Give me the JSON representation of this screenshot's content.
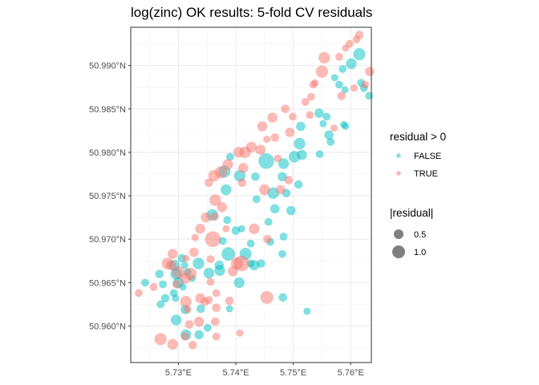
{
  "chart_data": {
    "type": "scatter",
    "title": "log(zinc) OK results: 5-fold CV residuals",
    "xlabel": "",
    "ylabel": "",
    "x_ticks": [
      5.73,
      5.74,
      5.75,
      5.76
    ],
    "x_tick_labels": [
      "5.73°E",
      "5.74°E",
      "5.75°E",
      "5.76°E"
    ],
    "y_ticks": [
      50.96,
      50.965,
      50.97,
      50.975,
      50.98,
      50.985,
      50.99
    ],
    "y_tick_labels": [
      "50.960°N",
      "50.965°N",
      "50.970°N",
      "50.975°N",
      "50.980°N",
      "50.985°N",
      "50.990°N"
    ],
    "xlim": [
      5.7217,
      5.7636
    ],
    "ylim": [
      50.9558,
      50.9944
    ],
    "grid": true,
    "legend_placement": "right",
    "colors": {
      "FALSE": "#00BFC4",
      "TRUE": "#F8766D",
      "size_key": "#000000"
    },
    "color_legend": {
      "title": "residual > 0",
      "entries": [
        "FALSE",
        "TRUE"
      ]
    },
    "size_legend": {
      "title": "|residual|",
      "entries": [
        "0.5",
        "1.0"
      ],
      "values": [
        0.5,
        1.0
      ]
    },
    "series": [
      {
        "name": "FALSE",
        "points": [
          [
            5.7615,
            50.9913,
            0.6
          ],
          [
            5.7601,
            50.9902,
            0.5
          ],
          [
            5.7586,
            50.9896,
            0.3
          ],
          [
            5.758,
            50.9878,
            0.3
          ],
          [
            5.7572,
            50.9886,
            0.25
          ],
          [
            5.7623,
            50.9874,
            0.3
          ],
          [
            5.7618,
            50.988,
            0.3
          ],
          [
            5.759,
            50.9872,
            0.25
          ],
          [
            5.7632,
            50.9865,
            0.3
          ],
          [
            5.7558,
            50.9841,
            0.3
          ],
          [
            5.7545,
            50.9845,
            0.4
          ],
          [
            5.7552,
            50.9833,
            0.25
          ],
          [
            5.7513,
            50.983,
            0.4
          ],
          [
            5.7562,
            50.982,
            0.4
          ],
          [
            5.7511,
            50.981,
            0.55
          ],
          [
            5.7565,
            50.9812,
            0.3
          ],
          [
            5.7591,
            50.983,
            0.25
          ],
          [
            5.7502,
            50.9795,
            0.55
          ],
          [
            5.7483,
            50.9787,
            0.5
          ],
          [
            5.7515,
            50.9797,
            0.45
          ],
          [
            5.7453,
            50.979,
            0.85
          ],
          [
            5.7407,
            50.9773,
            0.55
          ],
          [
            5.738,
            50.9778,
            0.6
          ],
          [
            5.739,
            50.9795,
            0.3
          ],
          [
            5.7434,
            50.9772,
            0.35
          ],
          [
            5.7481,
            50.9772,
            0.4
          ],
          [
            5.7488,
            50.9753,
            0.35
          ],
          [
            5.7509,
            50.9763,
            0.35
          ],
          [
            5.7465,
            50.9753,
            0.55
          ],
          [
            5.7383,
            50.9757,
            0.5
          ],
          [
            5.7436,
            50.9746,
            0.3
          ],
          [
            5.7457,
            50.972,
            0.3
          ],
          [
            5.7468,
            50.9735,
            0.4
          ],
          [
            5.7496,
            50.9733,
            0.4
          ],
          [
            5.7359,
            50.9728,
            0.55
          ],
          [
            5.7385,
            50.9722,
            0.3
          ],
          [
            5.74,
            50.971,
            0.35
          ],
          [
            5.741,
            50.9712,
            0.25
          ],
          [
            5.7377,
            50.9698,
            0.3
          ],
          [
            5.7426,
            50.9695,
            0.3
          ],
          [
            5.746,
            50.9697,
            0.3
          ],
          [
            5.7483,
            50.9703,
            0.3
          ],
          [
            5.7481,
            50.9683,
            0.3
          ],
          [
            5.7387,
            50.9683,
            0.7
          ],
          [
            5.7417,
            50.9683,
            0.6
          ],
          [
            5.7426,
            50.9672,
            0.3
          ],
          [
            5.7444,
            50.9672,
            0.35
          ],
          [
            5.7432,
            50.967,
            0.45
          ],
          [
            5.7371,
            50.967,
            0.4
          ],
          [
            5.7335,
            50.9672,
            0.55
          ],
          [
            5.7306,
            50.9678,
            0.35
          ],
          [
            5.7293,
            50.967,
            0.5
          ],
          [
            5.7311,
            50.967,
            0.25
          ],
          [
            5.7372,
            50.9664,
            0.5
          ],
          [
            5.7353,
            50.9661,
            0.5
          ],
          [
            5.7296,
            50.966,
            0.55
          ],
          [
            5.7316,
            50.9662,
            0.3
          ],
          [
            5.7324,
            50.9655,
            0.25
          ],
          [
            5.7406,
            50.965,
            0.5
          ],
          [
            5.73,
            50.965,
            0.5
          ],
          [
            5.7267,
            50.966,
            0.35
          ],
          [
            5.7242,
            50.965,
            0.3
          ],
          [
            5.7273,
            50.9648,
            0.3
          ],
          [
            5.7308,
            50.9645,
            0.25
          ],
          [
            5.7292,
            50.9638,
            0.3
          ],
          [
            5.7277,
            50.9632,
            0.35
          ],
          [
            5.7269,
            50.9625,
            0.3
          ],
          [
            5.7295,
            50.9632,
            0.25
          ],
          [
            5.7312,
            50.9619,
            0.4
          ],
          [
            5.7339,
            50.962,
            0.35
          ],
          [
            5.7296,
            50.9607,
            0.5
          ],
          [
            5.7313,
            50.959,
            0.5
          ],
          [
            5.7336,
            50.959,
            0.4
          ],
          [
            5.7351,
            50.9598,
            0.3
          ],
          [
            5.7389,
            50.962,
            0.25
          ],
          [
            5.7482,
            50.9633,
            0.35
          ],
          [
            5.7524,
            50.9617,
            0.25
          ],
          [
            5.7588,
            50.9832,
            0.25
          ],
          [
            5.7546,
            50.9798,
            0.3
          ]
        ]
      },
      {
        "name": "TRUE",
        "points": [
          [
            5.7598,
            50.9925,
            0.3
          ],
          [
            5.7591,
            50.992,
            0.25
          ],
          [
            5.7615,
            50.9935,
            0.35
          ],
          [
            5.761,
            50.993,
            0.3
          ],
          [
            5.758,
            50.991,
            0.3
          ],
          [
            5.7554,
            50.9909,
            0.55
          ],
          [
            5.755,
            50.9893,
            0.6
          ],
          [
            5.7538,
            50.988,
            0.25
          ],
          [
            5.7535,
            50.9878,
            0.3
          ],
          [
            5.7633,
            50.9893,
            0.4
          ],
          [
            5.7625,
            50.9878,
            0.3
          ],
          [
            5.7606,
            50.9874,
            0.25
          ],
          [
            5.7584,
            50.9865,
            0.35
          ],
          [
            5.7531,
            50.9864,
            0.3
          ],
          [
            5.7529,
            50.9843,
            0.3
          ],
          [
            5.7521,
            50.9858,
            0.3
          ],
          [
            5.7486,
            50.985,
            0.35
          ],
          [
            5.7499,
            50.9841,
            0.3
          ],
          [
            5.7464,
            50.984,
            0.45
          ],
          [
            5.7446,
            50.983,
            0.45
          ],
          [
            5.7494,
            50.9823,
            0.4
          ],
          [
            5.7468,
            50.9817,
            0.35
          ],
          [
            5.7427,
            50.9806,
            0.5
          ],
          [
            5.7443,
            50.9803,
            0.45
          ],
          [
            5.7416,
            50.98,
            0.55
          ],
          [
            5.7405,
            50.98,
            0.5
          ],
          [
            5.7454,
            50.9815,
            0.25
          ],
          [
            5.7473,
            50.9793,
            0.3
          ],
          [
            5.7362,
            50.9773,
            0.55
          ],
          [
            5.7386,
            50.9786,
            0.5
          ],
          [
            5.7374,
            50.9777,
            0.6
          ],
          [
            5.7353,
            50.9765,
            0.35
          ],
          [
            5.7364,
            50.9745,
            0.55
          ],
          [
            5.7376,
            50.9737,
            0.45
          ],
          [
            5.7363,
            50.9726,
            0.35
          ],
          [
            5.7348,
            50.9725,
            0.45
          ],
          [
            5.7338,
            50.9712,
            0.45
          ],
          [
            5.7411,
            50.9765,
            0.35
          ],
          [
            5.7413,
            50.9782,
            0.45
          ],
          [
            5.745,
            50.9757,
            0.5
          ],
          [
            5.7478,
            50.9757,
            0.4
          ],
          [
            5.7492,
            50.9768,
            0.35
          ],
          [
            5.7455,
            50.97,
            0.35
          ],
          [
            5.7432,
            50.9712,
            0.5
          ],
          [
            5.736,
            50.97,
            0.85
          ],
          [
            5.741,
            50.9672,
            0.85
          ],
          [
            5.7395,
            50.9663,
            0.45
          ],
          [
            5.7402,
            50.9672,
            0.6
          ],
          [
            5.7327,
            50.9685,
            0.4
          ],
          [
            5.7313,
            50.9678,
            0.25
          ],
          [
            5.729,
            50.9683,
            0.45
          ],
          [
            5.7281,
            50.9672,
            0.55
          ],
          [
            5.73,
            50.9662,
            0.6
          ],
          [
            5.7312,
            50.9655,
            0.5
          ],
          [
            5.7321,
            50.966,
            0.6
          ],
          [
            5.7287,
            50.967,
            0.45
          ],
          [
            5.7297,
            50.9648,
            0.35
          ],
          [
            5.7356,
            50.9651,
            0.3
          ],
          [
            5.7366,
            50.9638,
            0.3
          ],
          [
            5.7338,
            50.9632,
            0.45
          ],
          [
            5.7313,
            50.9628,
            0.55
          ],
          [
            5.7353,
            50.963,
            0.3
          ],
          [
            5.7257,
            50.9645,
            0.3
          ],
          [
            5.7231,
            50.9638,
            0.3
          ],
          [
            5.7346,
            50.9628,
            0.35
          ],
          [
            5.7454,
            50.9633,
            0.65
          ],
          [
            5.7366,
            50.9621,
            0.35
          ],
          [
            5.7316,
            50.9619,
            0.3
          ],
          [
            5.7312,
            50.9588,
            0.35
          ],
          [
            5.7269,
            50.9585,
            0.6
          ],
          [
            5.729,
            50.9579,
            0.5
          ],
          [
            5.7325,
            50.9578,
            0.35
          ],
          [
            5.7336,
            50.9605,
            0.45
          ],
          [
            5.7319,
            50.9602,
            0.35
          ],
          [
            5.7366,
            50.9588,
            0.3
          ],
          [
            5.7407,
            50.9592,
            0.25
          ],
          [
            5.7329,
            50.9702,
            0.25
          ],
          [
            5.7383,
            50.9712,
            0.25
          ],
          [
            5.7356,
            50.9677,
            0.3
          ],
          [
            5.7389,
            50.9629,
            0.35
          ],
          [
            5.7364,
            50.9605,
            0.35
          ],
          [
            5.7571,
            50.9828,
            0.25
          ]
        ]
      }
    ]
  }
}
